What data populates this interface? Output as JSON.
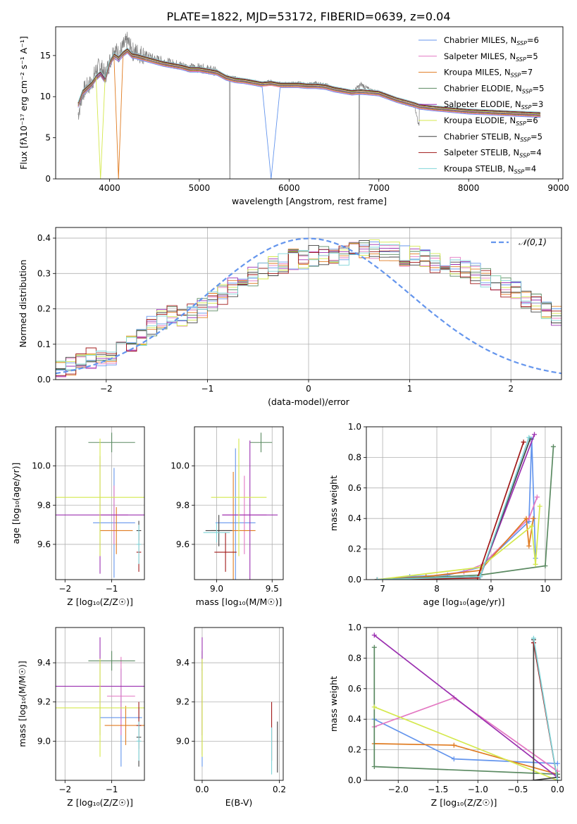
{
  "figure": {
    "title": "PLATE=1822, MJD=53172, FIBERID=0639, z=0.04"
  },
  "chart_data": [
    {
      "id": "spectrum",
      "type": "line",
      "xlabel": "wavelength [Angstrom, rest frame]",
      "ylabel": "Flux [fλ10⁻¹⁷ erg cm⁻² s⁻¹ A⁻¹]",
      "xlim": [
        3400,
        9050
      ],
      "ylim": [
        0,
        18.5
      ],
      "xticks": [
        4000,
        5000,
        6000,
        7000,
        8000,
        9000
      ],
      "yticks": [
        0,
        5,
        10,
        15
      ],
      "grid": false,
      "legend_position": "top-right",
      "data_series": {
        "name": "",
        "color": "#808080",
        "x": [
          3650,
          3700,
          3750,
          3800,
          3850,
          3900,
          3950,
          4000,
          4050,
          4100,
          4150,
          4200,
          4250,
          4300,
          4400,
          4500,
          4600,
          4700,
          4800,
          4900,
          5000,
          5100,
          5200,
          5300,
          5400,
          5500,
          5600,
          5700,
          5800,
          5900,
          6000,
          6100,
          6200,
          6300,
          6400,
          6500,
          6600,
          6700,
          6800,
          6900,
          7000,
          7100,
          7200,
          7300,
          7400,
          7450
        ],
        "y": [
          7.8,
          10.5,
          11.2,
          11.6,
          13.2,
          13.8,
          12.5,
          14.2,
          15.8,
          15.2,
          16.0,
          16.8,
          15.5,
          15.4,
          15.0,
          14.6,
          14.3,
          14.0,
          13.8,
          13.5,
          13.5,
          13.3,
          13.0,
          12.4,
          12.2,
          12.0,
          11.8,
          11.6,
          11.8,
          11.5,
          11.5,
          11.6,
          11.4,
          11.6,
          11.4,
          11.0,
          10.8,
          10.5,
          11.5,
          10.8,
          10.5,
          10.0,
          9.6,
          9.2,
          8.8,
          6.2
        ]
      },
      "model_series": [
        {
          "name": "Chabrier MILES, N$_{SSP}$=6",
          "color": "#6495ed"
        },
        {
          "name": "Salpeter MILES, N$_{SSP}$=5",
          "color": "#e377c2"
        },
        {
          "name": "Kroupa MILES, N$_{SSP}$=7",
          "color": "#e07b20"
        },
        {
          "name": "Chabrier ELODIE, N$_{SSP}$=5",
          "color": "#5b8a62"
        },
        {
          "name": "Salpeter ELODIE, N$_{SSP}$=3",
          "color": "#9b30b0"
        },
        {
          "name": "Kroupa ELODIE, N$_{SSP}$=6",
          "color": "#d4e84c"
        },
        {
          "name": "Chabrier STELIB, N$_{SSP}$=5",
          "color": "#404040"
        },
        {
          "name": "Salpeter STELIB, N$_{SSP}$=4",
          "color": "#a01818"
        },
        {
          "name": "Kroupa STELIB, N$_{SSP}$=4",
          "color": "#7fd4d8"
        }
      ],
      "model_x": [
        3650,
        3700,
        3750,
        3800,
        3850,
        3900,
        3950,
        4000,
        4050,
        4100,
        4150,
        4200,
        4250,
        4300,
        4400,
        4500,
        4600,
        4700,
        4800,
        4900,
        5000,
        5100,
        5200,
        5300,
        5400,
        5500,
        5600,
        5700,
        5800,
        5900,
        6000,
        6100,
        6200,
        6300,
        6400,
        6500,
        6600,
        6700,
        6800,
        6900,
        7000,
        7100,
        7200,
        7300,
        7400,
        7450,
        7600,
        7800,
        8000,
        8200,
        8400,
        8600,
        8800
      ],
      "model_y": [
        9.0,
        10.5,
        11.0,
        11.5,
        12.3,
        12.8,
        12.0,
        14.0,
        15.0,
        14.6,
        15.2,
        15.6,
        15.0,
        14.9,
        14.6,
        14.3,
        14.0,
        13.8,
        13.6,
        13.3,
        13.3,
        13.1,
        12.9,
        12.3,
        12.0,
        11.9,
        11.7,
        11.5,
        11.6,
        11.4,
        11.4,
        11.4,
        11.3,
        11.3,
        11.2,
        10.9,
        10.7,
        10.5,
        10.6,
        10.5,
        10.4,
        10.0,
        9.6,
        9.3,
        9.0,
        8.8,
        8.6,
        8.4,
        8.2,
        8.1,
        8.0,
        7.9,
        7.8
      ]
    },
    {
      "id": "residual-histogram",
      "type": "line",
      "xlabel": "(data-model)/error",
      "ylabel": "Normed distribution",
      "xlim": [
        -2.5,
        2.5
      ],
      "ylim": [
        0,
        0.43
      ],
      "xticks": [
        -2,
        -1,
        0,
        1,
        2
      ],
      "yticks": [
        0.0,
        0.1,
        0.2,
        0.3,
        0.4
      ],
      "grid": true,
      "legend": [
        "𝒩(0,1)"
      ],
      "legend_position": "top-right",
      "bin_width": 0.1,
      "bin_start": -2.5,
      "base_counts": [
        0.03,
        0.04,
        0.05,
        0.06,
        0.06,
        0.07,
        0.09,
        0.1,
        0.12,
        0.15,
        0.17,
        0.18,
        0.17,
        0.19,
        0.2,
        0.22,
        0.24,
        0.26,
        0.27,
        0.29,
        0.31,
        0.32,
        0.33,
        0.34,
        0.34,
        0.35,
        0.35,
        0.34,
        0.35,
        0.36,
        0.37,
        0.37,
        0.36,
        0.36,
        0.35,
        0.35,
        0.34,
        0.33,
        0.33,
        0.32,
        0.31,
        0.3,
        0.29,
        0.28,
        0.26,
        0.25,
        0.23,
        0.22,
        0.2,
        0.18,
        0.17,
        0.15,
        0.15,
        0.14,
        0.13,
        0.13,
        0.12,
        0.11,
        0.1,
        0.09,
        0.08,
        0.08,
        0.07,
        0.07,
        0.06,
        0.05,
        0.05,
        0.05,
        0.04,
        0.04
      ],
      "normal_curve": {
        "mean": 0,
        "sigma": 1,
        "name": "𝒩(0,1)",
        "color": "#6495ed"
      }
    },
    {
      "id": "age-vs-Z",
      "type": "scatter",
      "xlabel": "Z [log₁₀(Z/Z☉)]",
      "ylabel": "age  [log₁₀(age/yr)]",
      "xlim": [
        -2.2,
        -0.3
      ],
      "ylim": [
        9.42,
        10.2
      ],
      "xticks": [
        -2,
        -1
      ],
      "yticks": [
        9.6,
        9.8,
        10.0
      ],
      "grid": true,
      "points": [
        {
          "x": -0.95,
          "y": 9.71,
          "xerr": 0.45,
          "yerr": 0.28,
          "series": "Chabrier MILES"
        },
        {
          "x": -0.95,
          "y": 9.75,
          "xerr": 0.3,
          "yerr": 0.15,
          "series": "Salpeter MILES"
        },
        {
          "x": -0.9,
          "y": 9.67,
          "xerr": 0.35,
          "yerr": 0.12,
          "series": "Kroupa MILES"
        },
        {
          "x": -1.0,
          "y": 10.12,
          "xerr": 0.5,
          "yerr": 0.05,
          "series": "Chabrier ELODIE"
        },
        {
          "x": -1.25,
          "y": 9.75,
          "xerr": 1.05,
          "yerr": 0.3,
          "series": "Salpeter ELODIE"
        },
        {
          "x": -1.25,
          "y": 9.84,
          "xerr": 1.05,
          "yerr": 0.3,
          "series": "Kroupa ELODIE"
        },
        {
          "x": -0.42,
          "y": 9.67,
          "xerr": 0.05,
          "yerr": 0.05,
          "series": "Chabrier STELIB"
        },
        {
          "x": -0.42,
          "y": 9.56,
          "xerr": 0.05,
          "yerr": 0.1,
          "series": "Salpeter STELIB"
        },
        {
          "x": -0.42,
          "y": 9.6,
          "xerr": 0.05,
          "yerr": 0.1,
          "series": "Kroupa STELIB"
        }
      ]
    },
    {
      "id": "age-vs-mass",
      "type": "scatter",
      "xlabel": "mass [log₁₀(M/M☉)]",
      "ylabel": "",
      "xlim": [
        8.8,
        9.6
      ],
      "ylim": [
        9.42,
        10.2
      ],
      "xticks": [
        9.0,
        9.5
      ],
      "yticks": [
        9.6,
        9.8,
        10.0
      ],
      "grid": true,
      "points": [
        {
          "x": 9.17,
          "y": 9.71,
          "xerr": 0.18,
          "yerr": 0.38,
          "series": "Chabrier MILES"
        },
        {
          "x": 9.25,
          "y": 9.75,
          "xerr": 0.2,
          "yerr": 0.2,
          "series": "Salpeter MILES"
        },
        {
          "x": 9.15,
          "y": 9.67,
          "xerr": 0.2,
          "yerr": 0.3,
          "series": "Kroupa MILES"
        },
        {
          "x": 9.4,
          "y": 10.12,
          "xerr": 0.1,
          "yerr": 0.05,
          "series": "Chabrier ELODIE"
        },
        {
          "x": 9.3,
          "y": 9.75,
          "xerr": 0.25,
          "yerr": 0.38,
          "series": "Salpeter ELODIE"
        },
        {
          "x": 9.2,
          "y": 9.84,
          "xerr": 0.25,
          "yerr": 0.3,
          "series": "Kroupa ELODIE"
        },
        {
          "x": 9.02,
          "y": 9.67,
          "xerr": 0.12,
          "yerr": 0.08,
          "series": "Chabrier STELIB"
        },
        {
          "x": 9.08,
          "y": 9.56,
          "xerr": 0.1,
          "yerr": 0.1,
          "series": "Salpeter STELIB"
        },
        {
          "x": 9.0,
          "y": 9.66,
          "xerr": 0.12,
          "yerr": 0.05,
          "series": "Kroupa STELIB"
        }
      ]
    },
    {
      "id": "massweight-vs-age",
      "type": "line",
      "xlabel": "age  [log₁₀(age/yr)]",
      "ylabel": "mass weight",
      "xlim": [
        6.7,
        10.3
      ],
      "ylim": [
        0,
        1.0
      ],
      "xticks": [
        7,
        8,
        9,
        10
      ],
      "yticks": [
        0.0,
        0.2,
        0.4,
        0.6,
        0.8,
        1.0
      ],
      "grid": true,
      "series": [
        {
          "name": "Chabrier MILES",
          "x": [
            6.9,
            7.5,
            8.2,
            8.8,
            9.7,
            9.75,
            9.82
          ],
          "y": [
            0.0,
            0.02,
            0.03,
            0.08,
            0.38,
            0.92,
            0.14
          ]
        },
        {
          "name": "Salpeter MILES",
          "x": [
            6.9,
            7.8,
            8.5,
            8.85,
            9.7,
            9.85
          ],
          "y": [
            0.0,
            0.02,
            0.05,
            0.1,
            0.4,
            0.54
          ]
        },
        {
          "name": "Kroupa MILES",
          "x": [
            6.9,
            7.8,
            8.8,
            9.65,
            9.7,
            9.78
          ],
          "y": [
            0.0,
            0.02,
            0.06,
            0.4,
            0.22,
            0.4
          ]
        },
        {
          "name": "Chabrier ELODIE",
          "x": [
            6.9,
            8.8,
            10.0,
            10.15
          ],
          "y": [
            0.0,
            0.03,
            0.09,
            0.87
          ]
        },
        {
          "name": "Salpeter ELODIE",
          "x": [
            6.9,
            8.8,
            9.8
          ],
          "y": [
            0.0,
            0.02,
            0.95
          ]
        },
        {
          "name": "Kroupa ELODIE",
          "x": [
            6.9,
            8.8,
            9.75,
            9.82,
            9.9
          ],
          "y": [
            0.0,
            0.08,
            0.35,
            0.1,
            0.48
          ]
        },
        {
          "name": "Chabrier STELIB",
          "x": [
            6.9,
            8.8,
            9.72
          ],
          "y": [
            0.0,
            0.02,
            0.92
          ]
        },
        {
          "name": "Salpeter STELIB",
          "x": [
            6.9,
            8.75,
            9.6
          ],
          "y": [
            0.0,
            0.01,
            0.9
          ]
        },
        {
          "name": "Kroupa STELIB",
          "x": [
            6.9,
            8.8,
            9.7
          ],
          "y": [
            0.0,
            0.02,
            0.93
          ]
        }
      ]
    },
    {
      "id": "mass-vs-Z",
      "type": "scatter",
      "xlabel": "Z [log₁₀(Z/Z☉)]",
      "ylabel": "mass [log₁₀(M/M☉)]",
      "xlim": [
        -2.2,
        -0.3
      ],
      "ylim": [
        8.8,
        9.58
      ],
      "xticks": [
        -2,
        -1
      ],
      "yticks": [
        9.0,
        9.2,
        9.4
      ],
      "grid": true,
      "points": [
        {
          "x": -0.8,
          "y": 9.12,
          "xerr": 0.45,
          "yerr": 0.25,
          "series": "Chabrier MILES"
        },
        {
          "x": -0.8,
          "y": 9.23,
          "xerr": 0.3,
          "yerr": 0.2,
          "series": "Salpeter MILES"
        },
        {
          "x": -0.7,
          "y": 9.08,
          "xerr": 0.45,
          "yerr": 0.1,
          "series": "Kroupa MILES"
        },
        {
          "x": -1.0,
          "y": 9.41,
          "xerr": 0.5,
          "yerr": 0.05,
          "series": "Chabrier ELODIE"
        },
        {
          "x": -1.25,
          "y": 9.28,
          "xerr": 1.05,
          "yerr": 0.25,
          "series": "Salpeter ELODIE"
        },
        {
          "x": -1.25,
          "y": 9.17,
          "xerr": 1.05,
          "yerr": 0.25,
          "series": "Kroupa ELODIE"
        },
        {
          "x": -0.42,
          "y": 9.02,
          "xerr": 0.05,
          "yerr": 0.15,
          "series": "Chabrier STELIB"
        },
        {
          "x": -0.42,
          "y": 9.08,
          "xerr": 0.05,
          "yerr": 0.12,
          "series": "Salpeter STELIB"
        },
        {
          "x": -0.42,
          "y": 9.0,
          "xerr": 0.05,
          "yerr": 0.1,
          "series": "Kroupa STELIB"
        }
      ]
    },
    {
      "id": "mass-vs-EBV",
      "type": "scatter",
      "xlabel": "E(B-V)",
      "ylabel": "",
      "xlim": [
        -0.02,
        0.21
      ],
      "ylim": [
        8.8,
        9.58
      ],
      "xticks": [
        0.0,
        0.2
      ],
      "yticks": [
        9.0,
        9.2,
        9.4
      ],
      "grid": true,
      "points": [
        {
          "x": 0.0,
          "y": 9.12,
          "yerr": 0.25,
          "series": "Chabrier MILES"
        },
        {
          "x": 0.0,
          "y": 9.23,
          "yerr": 0.2,
          "series": "Salpeter MILES"
        },
        {
          "x": 0.0,
          "y": 9.08,
          "yerr": 0.15,
          "series": "Kroupa MILES"
        },
        {
          "x": 0.0,
          "y": 9.41,
          "yerr": 0.05,
          "series": "Chabrier ELODIE"
        },
        {
          "x": 0.0,
          "y": 9.28,
          "yerr": 0.25,
          "series": "Salpeter ELODIE"
        },
        {
          "x": 0.0,
          "y": 9.17,
          "yerr": 0.25,
          "series": "Kroupa ELODIE"
        },
        {
          "x": 0.195,
          "y": 8.97,
          "yerr": 0.13,
          "series": "Chabrier STELIB"
        },
        {
          "x": 0.18,
          "y": 9.05,
          "yerr": 0.15,
          "series": "Salpeter STELIB"
        },
        {
          "x": 0.18,
          "y": 8.95,
          "yerr": 0.12,
          "series": "Kroupa STELIB"
        }
      ]
    },
    {
      "id": "massweight-vs-Z",
      "type": "line",
      "xlabel": "Z [log₁₀(Z/Z☉)]",
      "ylabel": "mass weight",
      "xlim": [
        -2.4,
        0.05
      ],
      "ylim": [
        0,
        1.0
      ],
      "xticks": [
        -2.0,
        -1.5,
        -1.0,
        -0.5,
        0.0
      ],
      "yticks": [
        0.0,
        0.2,
        0.4,
        0.6,
        0.8,
        1.0
      ],
      "grid": true,
      "series": [
        {
          "name": "Chabrier MILES",
          "x": [
            -2.3,
            -1.3,
            0.0
          ],
          "y": [
            0.4,
            0.14,
            0.11
          ]
        },
        {
          "name": "Salpeter MILES",
          "x": [
            -2.3,
            -1.3,
            0.0
          ],
          "y": [
            0.35,
            0.54,
            0.06
          ]
        },
        {
          "name": "Kroupa MILES",
          "x": [
            -2.3,
            -1.3,
            0.0
          ],
          "y": [
            0.24,
            0.23,
            0.04
          ]
        },
        {
          "name": "Chabrier ELODIE",
          "x": [
            -2.3,
            -2.3,
            0.0
          ],
          "y": [
            0.87,
            0.09,
            0.04
          ]
        },
        {
          "name": "Salpeter ELODIE",
          "x": [
            -2.3,
            0.0
          ],
          "y": [
            0.95,
            0.02
          ]
        },
        {
          "name": "Kroupa ELODIE",
          "x": [
            -2.3,
            0.0
          ],
          "y": [
            0.48,
            0.0
          ]
        },
        {
          "name": "Chabrier STELIB",
          "x": [
            -0.3,
            -0.3,
            0.0
          ],
          "y": [
            0.92,
            0.0,
            0.02
          ]
        },
        {
          "name": "Salpeter STELIB",
          "x": [
            -0.3,
            0.0
          ],
          "y": [
            0.9,
            0.0
          ]
        },
        {
          "name": "Kroupa STELIB",
          "x": [
            -0.3,
            0.0
          ],
          "y": [
            0.93,
            0.0
          ]
        }
      ]
    }
  ]
}
